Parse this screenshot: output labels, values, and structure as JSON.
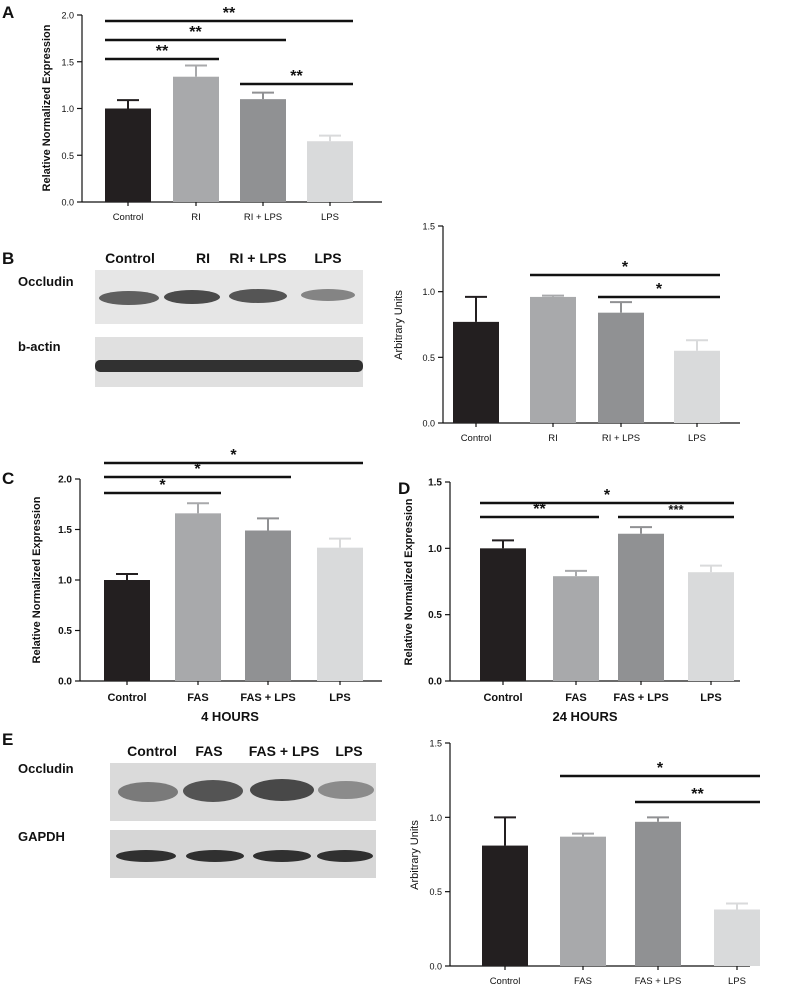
{
  "panels": [
    {
      "id": "A",
      "letter": "A"
    },
    {
      "id": "B",
      "letter": "B"
    },
    {
      "id": "C",
      "letter": "C"
    },
    {
      "id": "D",
      "letter": "D"
    },
    {
      "id": "E",
      "letter": "E"
    }
  ],
  "blots": {
    "B": {
      "lanes": [
        "Control",
        "RI",
        "RI + LPS",
        "LPS"
      ],
      "rows": [
        "Occludin",
        "b-actin"
      ]
    },
    "E": {
      "lanes": [
        "Control",
        "FAS",
        "FAS + LPS",
        "LPS"
      ],
      "rows": [
        "Occludin",
        "GAPDH"
      ]
    }
  },
  "colors": {
    "control": "#231f20",
    "second": "#a8a9ab",
    "third": "#909193",
    "lps": "#d9dadb"
  },
  "chart_data": [
    {
      "id": "A",
      "type": "bar",
      "categories": [
        "Control",
        "RI",
        "RI + LPS",
        "LPS"
      ],
      "values": [
        1.0,
        1.34,
        1.1,
        0.65
      ],
      "errors": [
        0.09,
        0.12,
        0.07,
        0.06
      ],
      "ylabel": "Relative Normalized Expression",
      "ylim": [
        0,
        2.0
      ],
      "yticks": [
        "0.0",
        "0.5",
        "1.0",
        "1.5",
        "2.0"
      ],
      "ytick_values": [
        0,
        0.5,
        1.0,
        1.5,
        2.0
      ],
      "significance": [
        {
          "from": 0,
          "to": 3,
          "label": "**"
        },
        {
          "from": 0,
          "to": 2,
          "label": "**"
        },
        {
          "from": 0,
          "to": 1,
          "label": "**"
        },
        {
          "from": 2,
          "to": 3,
          "label": "**"
        }
      ]
    },
    {
      "id": "B",
      "type": "bar",
      "categories": [
        "Control",
        "RI",
        "RI + LPS",
        "LPS"
      ],
      "values": [
        0.77,
        0.96,
        0.84,
        0.55
      ],
      "errors": [
        0.19,
        0.01,
        0.08,
        0.08
      ],
      "ylabel": "Arbitrary Units",
      "ylim": [
        0,
        1.5
      ],
      "yticks": [
        "0.0",
        "0.5",
        "1.0",
        "1.5"
      ],
      "ytick_values": [
        0,
        0.5,
        1.0,
        1.5
      ],
      "significance": [
        {
          "from": 1,
          "to": 3,
          "label": "*"
        },
        {
          "from": 2,
          "to": 3,
          "label": "*"
        }
      ]
    },
    {
      "id": "C",
      "type": "bar",
      "title": "4 HOURS",
      "categories": [
        "Control",
        "FAS",
        "FAS + LPS",
        "LPS"
      ],
      "values": [
        1.0,
        1.66,
        1.49,
        1.32
      ],
      "errors": [
        0.06,
        0.1,
        0.12,
        0.09
      ],
      "ylabel": "Relative Normalized Expression",
      "ylim": [
        0,
        2.0
      ],
      "yticks": [
        "0.0",
        "0.5",
        "1.0",
        "1.5",
        "2.0"
      ],
      "ytick_values": [
        0,
        0.5,
        1.0,
        1.5,
        2.0
      ],
      "significance": [
        {
          "from": 0,
          "to": 3,
          "label": "*"
        },
        {
          "from": 0,
          "to": 2,
          "label": "*"
        },
        {
          "from": 0,
          "to": 1,
          "label": "*"
        }
      ]
    },
    {
      "id": "D",
      "type": "bar",
      "title": "24 HOURS",
      "categories": [
        "Control",
        "FAS",
        "FAS + LPS",
        "LPS"
      ],
      "values": [
        1.0,
        0.79,
        1.11,
        0.82
      ],
      "errors": [
        0.06,
        0.04,
        0.05,
        0.05
      ],
      "ylabel": "Relative Normalized Expression",
      "ylim": [
        0,
        1.5
      ],
      "yticks": [
        "0.0",
        "0.5",
        "1.0",
        "1.5"
      ],
      "ytick_values": [
        0,
        0.5,
        1.0,
        1.5
      ],
      "significance": [
        {
          "from": 0,
          "to": 3,
          "label": "*"
        },
        {
          "from": 0,
          "to": 1,
          "label": "**"
        },
        {
          "from": 2,
          "to": 3,
          "label": "***"
        }
      ]
    },
    {
      "id": "E",
      "type": "bar",
      "categories": [
        "Control",
        "FAS",
        "FAS + LPS",
        "LPS"
      ],
      "values": [
        0.81,
        0.87,
        0.97,
        0.38
      ],
      "errors": [
        0.19,
        0.02,
        0.03,
        0.04
      ],
      "ylabel": "Arbitrary Units",
      "ylim": [
        0,
        1.5
      ],
      "yticks": [
        "0.0",
        "0.5",
        "1.0",
        "1.5"
      ],
      "ytick_values": [
        0,
        0.5,
        1.0,
        1.5
      ],
      "significance": [
        {
          "from": 1,
          "to": 3,
          "label": "*"
        },
        {
          "from": 2,
          "to": 3,
          "label": "**"
        }
      ]
    }
  ]
}
